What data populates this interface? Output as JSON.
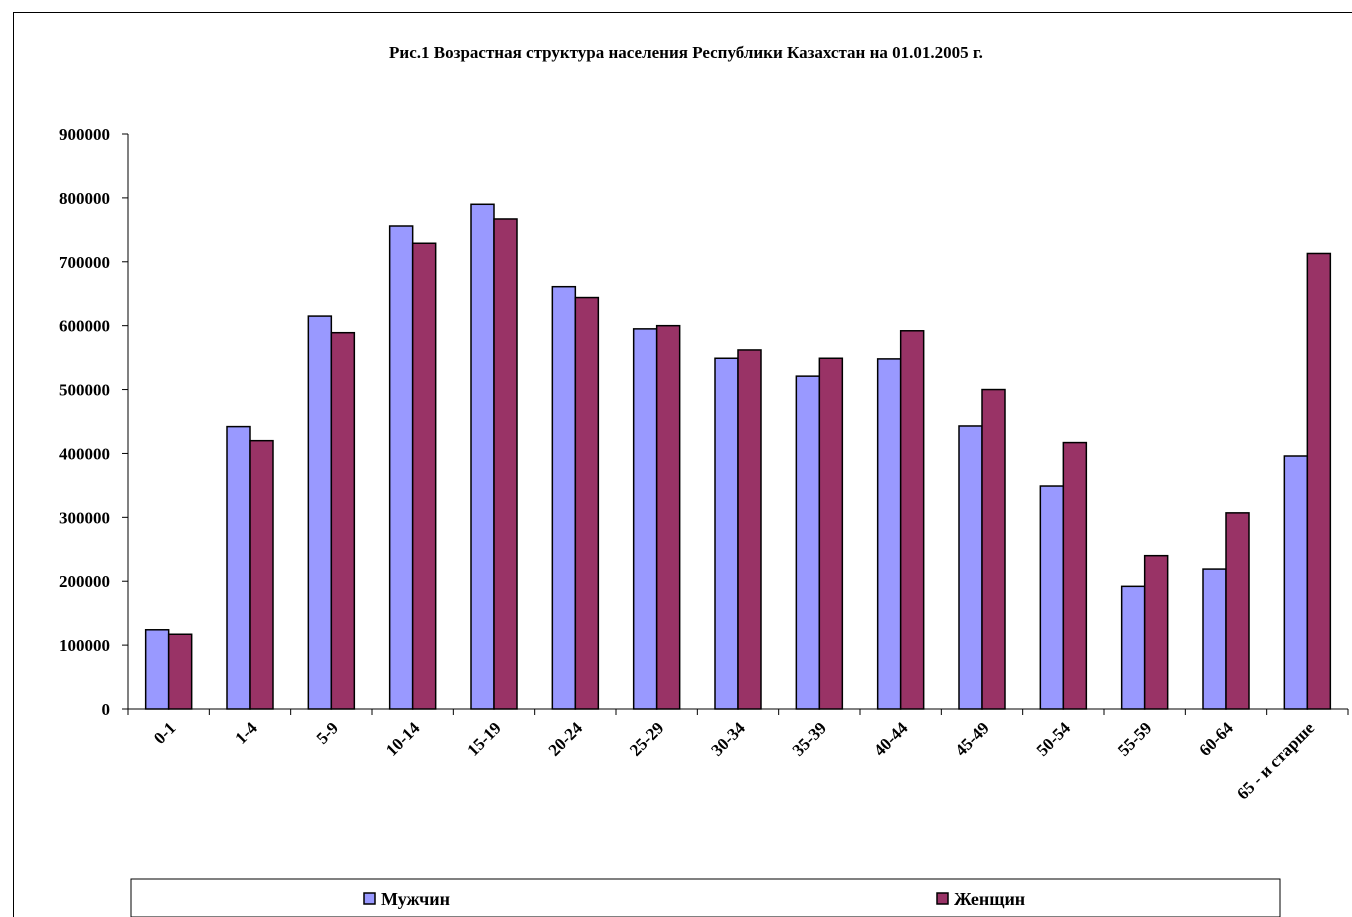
{
  "chart_data": {
    "type": "bar",
    "title": "Рис.1 Возрастная структура населения Республики Казахстан на 01.01.2005 г.",
    "xlabel": "",
    "ylabel": "",
    "ylim": [
      0,
      900000
    ],
    "yticks": [
      "0",
      "100000",
      "200000",
      "300000",
      "400000",
      "500000",
      "600000",
      "700000",
      "800000",
      "900000"
    ],
    "grid": false,
    "legend_position": "bottom",
    "categories": [
      "0-1",
      "1-4",
      "5-9",
      "10-14",
      "15-19",
      "20-24",
      "25-29",
      "30-34",
      "35-39",
      "40-44",
      "45-49",
      "50-54",
      "55-59",
      "60-64",
      "65 - и старше"
    ],
    "series": [
      {
        "name": "Мужчин",
        "color": "#9999ff",
        "values": [
          124000,
          442000,
          615000,
          756000,
          790000,
          661000,
          595000,
          549000,
          521000,
          548000,
          443000,
          349000,
          192000,
          219000,
          396000
        ]
      },
      {
        "name": "Женщин",
        "color": "#993366",
        "values": [
          117000,
          420000,
          589000,
          729000,
          767000,
          644000,
          600000,
          562000,
          549000,
          592000,
          500000,
          417000,
          240000,
          307000,
          713000
        ]
      }
    ]
  }
}
